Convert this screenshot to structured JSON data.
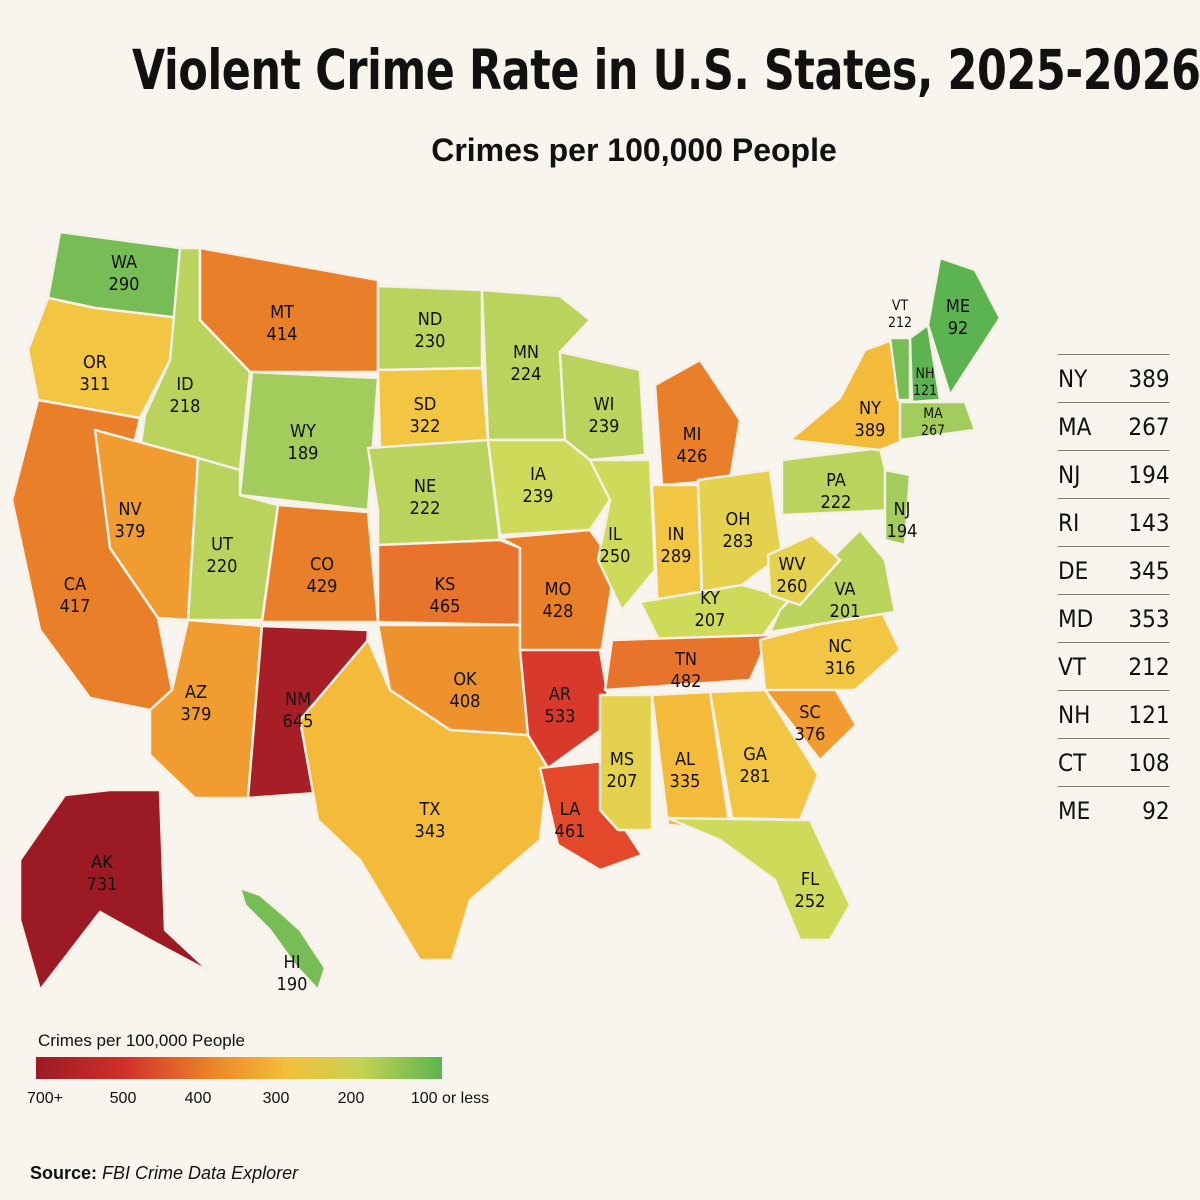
{
  "title": "Violent Crime Rate in U.S. States, 2025-2026",
  "subtitle": "Crimes per 100,000 People",
  "colors": {
    "c731": "#9b1a24",
    "c645": "#a81e26",
    "c533": "#d9392b",
    "c461": "#e3482b",
    "c480": "#e8742b",
    "c420": "#ea7f2a",
    "c400": "#ee922d",
    "c370": "#f09c30",
    "c340": "#f3bb39",
    "c310": "#f2c542",
    "c280": "#e4d24e",
    "c250": "#cedb5a",
    "c225": "#b9d35c",
    "c200": "#a2cc5c",
    "c120": "#77bd55",
    "c92": "#5cb450"
  },
  "states": [
    {
      "abbr": "WA",
      "value": "290"
    },
    {
      "abbr": "OR",
      "value": "311"
    },
    {
      "abbr": "CA",
      "value": "417"
    },
    {
      "abbr": "ID",
      "value": "218"
    },
    {
      "abbr": "NV",
      "value": "379"
    },
    {
      "abbr": "MT",
      "value": "414"
    },
    {
      "abbr": "WY",
      "value": "189"
    },
    {
      "abbr": "UT",
      "value": "220"
    },
    {
      "abbr": "AZ",
      "value": "379"
    },
    {
      "abbr": "CO",
      "value": "429"
    },
    {
      "abbr": "NM",
      "value": "645"
    },
    {
      "abbr": "ND",
      "value": "230"
    },
    {
      "abbr": "SD",
      "value": "322"
    },
    {
      "abbr": "NE",
      "value": "222"
    },
    {
      "abbr": "KS",
      "value": "465"
    },
    {
      "abbr": "OK",
      "value": "408"
    },
    {
      "abbr": "TX",
      "value": "343"
    },
    {
      "abbr": "MN",
      "value": "224"
    },
    {
      "abbr": "IA",
      "value": "239"
    },
    {
      "abbr": "MO",
      "value": "428"
    },
    {
      "abbr": "AR",
      "value": "533"
    },
    {
      "abbr": "LA",
      "value": "461"
    },
    {
      "abbr": "WI",
      "value": "239"
    },
    {
      "abbr": "IL",
      "value": "250"
    },
    {
      "abbr": "MI",
      "value": "426"
    },
    {
      "abbr": "IN",
      "value": "289"
    },
    {
      "abbr": "OH",
      "value": "283"
    },
    {
      "abbr": "KY",
      "value": "207"
    },
    {
      "abbr": "TN",
      "value": "482"
    },
    {
      "abbr": "MS",
      "value": "207"
    },
    {
      "abbr": "AL",
      "value": "335"
    },
    {
      "abbr": "GA",
      "value": "281"
    },
    {
      "abbr": "FL",
      "value": "252"
    },
    {
      "abbr": "SC",
      "value": "376"
    },
    {
      "abbr": "NC",
      "value": "316"
    },
    {
      "abbr": "VA",
      "value": "201"
    },
    {
      "abbr": "WV",
      "value": "260"
    },
    {
      "abbr": "PA",
      "value": "222"
    },
    {
      "abbr": "NY",
      "value": "389"
    },
    {
      "abbr": "NJ",
      "value": "194"
    },
    {
      "abbr": "VT",
      "value": "212"
    },
    {
      "abbr": "NH",
      "value": "121"
    },
    {
      "abbr": "MA",
      "value": "267"
    },
    {
      "abbr": "ME",
      "value": "92"
    },
    {
      "abbr": "AK",
      "value": "731"
    },
    {
      "abbr": "HI",
      "value": "190"
    }
  ],
  "side_table": [
    {
      "abbr": "NY",
      "value": "389"
    },
    {
      "abbr": "MA",
      "value": "267"
    },
    {
      "abbr": "NJ",
      "value": "194"
    },
    {
      "abbr": "RI",
      "value": "143"
    },
    {
      "abbr": "DE",
      "value": "345"
    },
    {
      "abbr": "MD",
      "value": "353"
    },
    {
      "abbr": "VT",
      "value": "212"
    },
    {
      "abbr": "NH",
      "value": "121"
    },
    {
      "abbr": "CT",
      "value": "108"
    },
    {
      "abbr": "ME",
      "value": "92"
    }
  ],
  "legend": {
    "title": "Crimes per 100,000 People",
    "ticks": [
      "700+",
      "500",
      "400",
      "300",
      "200",
      "100 or less"
    ]
  },
  "source": {
    "label": "Source:",
    "text": "FBI Crime Data Explorer"
  }
}
